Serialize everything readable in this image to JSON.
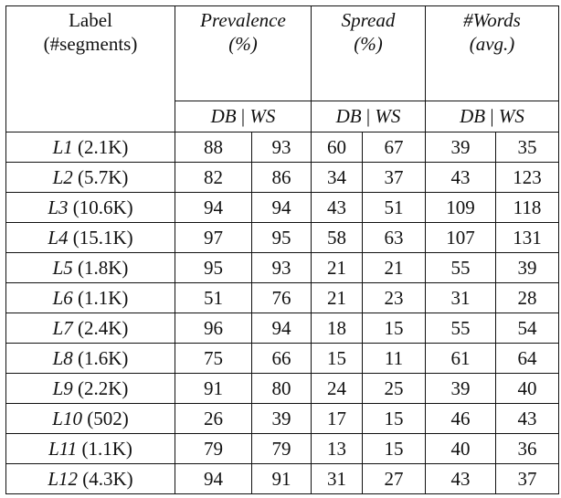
{
  "header": {
    "label": "Label",
    "label_sub": "(#segments)",
    "groups": [
      {
        "name": "Prevalence",
        "unit": "(%)"
      },
      {
        "name": "Spread",
        "unit": "(%)"
      },
      {
        "name": "#Words",
        "unit": "(avg.)"
      }
    ],
    "sub": {
      "db": "DB",
      "sep": " | ",
      "ws": "WS"
    }
  },
  "rows": [
    {
      "label": "L1",
      "count": "(2.1K)",
      "v": [
        "88",
        "93",
        "60",
        "67",
        "39",
        "35"
      ]
    },
    {
      "label": "L2",
      "count": "(5.7K)",
      "v": [
        "82",
        "86",
        "34",
        "37",
        "43",
        "123"
      ]
    },
    {
      "label": "L3",
      "count": "(10.6K)",
      "v": [
        "94",
        "94",
        "43",
        "51",
        "109",
        "118"
      ]
    },
    {
      "label": "L4",
      "count": "(15.1K)",
      "v": [
        "97",
        "95",
        "58",
        "63",
        "107",
        "131"
      ]
    },
    {
      "label": "L5",
      "count": "(1.8K)",
      "v": [
        "95",
        "93",
        "21",
        "21",
        "55",
        "39"
      ]
    },
    {
      "label": "L6",
      "count": "(1.1K)",
      "v": [
        "51",
        "76",
        "21",
        "23",
        "31",
        "28"
      ]
    },
    {
      "label": "L7",
      "count": "(2.4K)",
      "v": [
        "96",
        "94",
        "18",
        "15",
        "55",
        "54"
      ]
    },
    {
      "label": "L8",
      "count": "(1.6K)",
      "v": [
        "75",
        "66",
        "15",
        "11",
        "61",
        "64"
      ]
    },
    {
      "label": "L9",
      "count": "(2.2K)",
      "v": [
        "91",
        "80",
        "24",
        "25",
        "39",
        "40"
      ]
    },
    {
      "label": "L10",
      "count": "(502)",
      "v": [
        "26",
        "39",
        "17",
        "15",
        "46",
        "43"
      ]
    },
    {
      "label": "L11",
      "count": "(1.1K)",
      "v": [
        "79",
        "79",
        "13",
        "15",
        "40",
        "36"
      ]
    },
    {
      "label": "L12",
      "count": "(4.3K)",
      "v": [
        "94",
        "91",
        "31",
        "27",
        "43",
        "37"
      ]
    }
  ]
}
